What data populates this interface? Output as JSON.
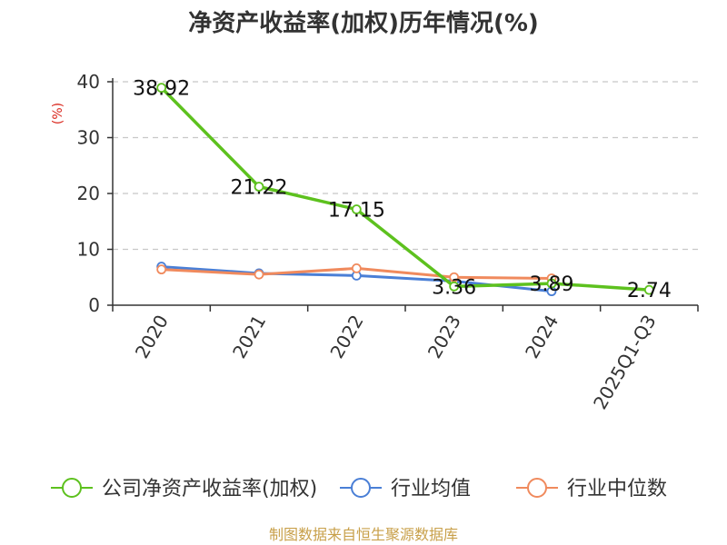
{
  "chart_data": {
    "type": "line",
    "title": "净资产收益率(加权)历年情况(%)",
    "ylabel": "(%)",
    "xlabel": "",
    "categories": [
      "2020",
      "2021",
      "2022",
      "2023",
      "2024",
      "2025Q1-Q3"
    ],
    "ylim": [
      0,
      40
    ],
    "yticks": [
      0,
      10,
      20,
      30,
      40
    ],
    "grid": true,
    "legend_position": "bottom",
    "series": [
      {
        "name": "公司净资产收益率(加权)",
        "color": "#5dc11e",
        "values": [
          38.92,
          21.22,
          17.15,
          3.36,
          3.89,
          2.74
        ],
        "labels": [
          "38.92",
          "21.22",
          "17.15",
          "3.36",
          "3.89",
          "2.74"
        ]
      },
      {
        "name": "行业均值",
        "color": "#4a7fd6",
        "values": [
          6.9,
          5.7,
          5.3,
          4.3,
          2.5,
          null
        ]
      },
      {
        "name": "行业中位数",
        "color": "#f08a5d",
        "values": [
          6.4,
          5.5,
          6.6,
          5.0,
          4.8,
          null
        ]
      }
    ]
  },
  "source": "制图数据来自恒生聚源数据库"
}
